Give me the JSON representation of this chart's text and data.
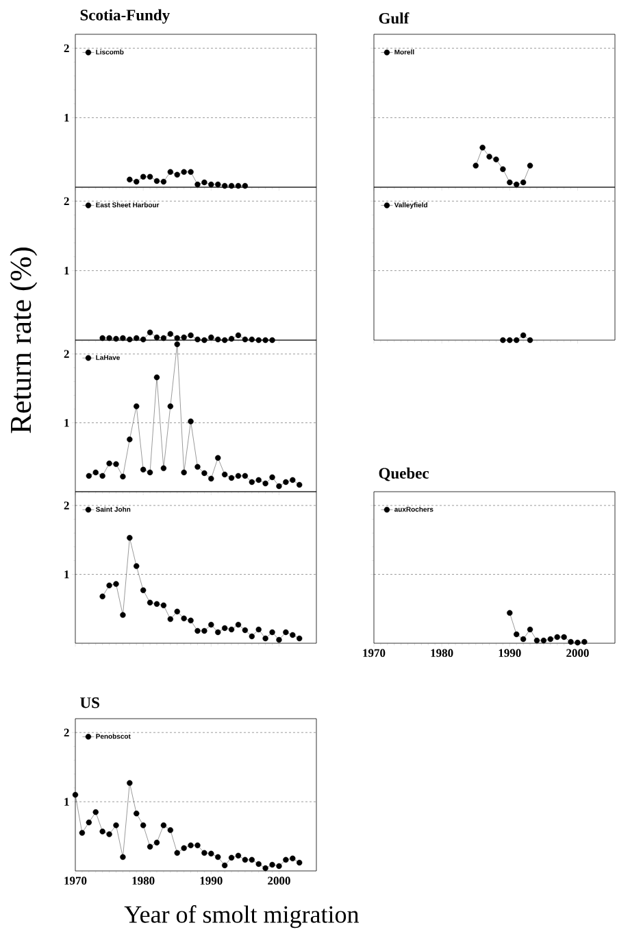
{
  "chart_data": [
    {
      "type": "line",
      "title": "Scotia-Fundy",
      "xlim": [
        1970,
        2005.5
      ],
      "ylim": [
        0,
        2.2
      ],
      "xticks": [
        1970,
        1980,
        1990,
        2000
      ],
      "yticks": [
        1,
        2
      ],
      "grid": "y",
      "legend": "top left",
      "marker": "circle",
      "line_style": "solid",
      "tick_labels": "y",
      "series": [
        {
          "name": "Liscomb",
          "color": "#000000",
          "x": [
            1978,
            1979,
            1980,
            1981,
            1982,
            1983,
            1984,
            1985,
            1986,
            1987,
            1988,
            1989,
            1990,
            1991,
            1992,
            1993,
            1994,
            1995
          ],
          "values": [
            0.11,
            0.08,
            0.15,
            0.15,
            0.09,
            0.08,
            0.22,
            0.18,
            0.22,
            0.22,
            0.04,
            0.07,
            0.04,
            0.04,
            0.02,
            0.02,
            0.02,
            0.02
          ]
        }
      ]
    },
    {
      "type": "line",
      "title": "Gulf",
      "xlim": [
        1970,
        2005.5
      ],
      "ylim": [
        0,
        2.2
      ],
      "xticks": [
        1970,
        1980,
        1990,
        2000
      ],
      "yticks": [
        1,
        2
      ],
      "grid": "y",
      "legend": "top left",
      "marker": "circle",
      "line_style": "solid",
      "tick_labels": false,
      "series": [
        {
          "name": "Morell",
          "color": "#000000",
          "x": [
            1985,
            1986,
            1987,
            1988,
            1989,
            1990,
            1991,
            1992,
            1993
          ],
          "values": [
            0.31,
            0.57,
            0.44,
            0.4,
            0.26,
            0.07,
            0.04,
            0.07,
            0.31
          ]
        }
      ]
    },
    {
      "type": "line",
      "xlim": [
        1970,
        2005.5
      ],
      "ylim": [
        0,
        2.2
      ],
      "xticks": [
        1970,
        1980,
        1990,
        2000
      ],
      "yticks": [
        1,
        2
      ],
      "grid": "y",
      "legend": "top left",
      "marker": "circle",
      "line_style": "solid",
      "tick_labels": "y",
      "series": [
        {
          "name": "East Sheet Harbour",
          "color": "#000000",
          "x": [
            1974,
            1975,
            1976,
            1977,
            1978,
            1979,
            1980,
            1981,
            1982,
            1983,
            1984,
            1985,
            1986,
            1987,
            1988,
            1989,
            1990,
            1991,
            1992,
            1993,
            1994,
            1995,
            1996,
            1997,
            1998,
            1999
          ],
          "values": [
            0.03,
            0.03,
            0.02,
            0.03,
            0.01,
            0.03,
            0.01,
            0.11,
            0.04,
            0.03,
            0.09,
            0.03,
            0.04,
            0.07,
            0.01,
            0.0,
            0.04,
            0.01,
            0.0,
            0.02,
            0.07,
            0.01,
            0.01,
            0.0,
            0.0,
            0.0
          ]
        }
      ]
    },
    {
      "type": "line",
      "xlim": [
        1970,
        2005.5
      ],
      "ylim": [
        0,
        2.2
      ],
      "xticks": [
        1970,
        1980,
        1990,
        2000
      ],
      "yticks": [
        1,
        2
      ],
      "grid": "y",
      "legend": "top left",
      "marker": "circle",
      "line_style": "solid",
      "tick_labels": false,
      "series": [
        {
          "name": "Valleyfield",
          "color": "#000000",
          "x": [
            1989,
            1990,
            1991,
            1992,
            1993
          ],
          "values": [
            0.0,
            0.0,
            0.0,
            0.07,
            0.0
          ]
        }
      ]
    },
    {
      "type": "line",
      "ylabel": "Return rate (%)",
      "xlim": [
        1970,
        2005.5
      ],
      "ylim": [
        0,
        2.2
      ],
      "xticks": [
        1970,
        1980,
        1990,
        2000
      ],
      "yticks": [
        1,
        2
      ],
      "grid": "y",
      "legend": "top left",
      "marker": "circle",
      "line_style": "solid",
      "tick_labels": "y",
      "series": [
        {
          "name": "LaHave",
          "color": "#000000",
          "x": [
            1972,
            1973,
            1974,
            1975,
            1976,
            1977,
            1978,
            1979,
            1980,
            1981,
            1982,
            1983,
            1984,
            1985,
            1986,
            1987,
            1988,
            1989,
            1990,
            1991,
            1992,
            1993,
            1994,
            1995,
            1996,
            1997,
            1998,
            1999,
            2000,
            2001,
            2002,
            2003
          ],
          "values": [
            0.23,
            0.28,
            0.23,
            0.41,
            0.4,
            0.22,
            0.76,
            1.24,
            0.32,
            0.28,
            1.66,
            0.34,
            1.24,
            2.14,
            0.28,
            1.02,
            0.36,
            0.27,
            0.19,
            0.49,
            0.25,
            0.2,
            0.23,
            0.23,
            0.14,
            0.17,
            0.12,
            0.21,
            0.08,
            0.14,
            0.17,
            0.1
          ]
        }
      ]
    },
    {
      "type": "line",
      "xlim": [
        1970,
        2005.5
      ],
      "ylim": [
        0,
        2.2
      ],
      "xticks": [
        1970,
        1980,
        1990,
        2000
      ],
      "yticks": [
        1,
        2
      ],
      "grid": "y",
      "legend": "top left",
      "marker": "circle",
      "line_style": "solid",
      "tick_labels": "y",
      "series": [
        {
          "name": "Saint John",
          "color": "#000000",
          "x": [
            1974,
            1975,
            1976,
            1977,
            1978,
            1979,
            1980,
            1981,
            1982,
            1983,
            1984,
            1985,
            1986,
            1987,
            1988,
            1989,
            1990,
            1991,
            1992,
            1993,
            1994,
            1995,
            1996,
            1997,
            1998,
            1999,
            2000,
            2001,
            2002,
            2003
          ],
          "values": [
            0.68,
            0.84,
            0.86,
            0.41,
            1.53,
            1.12,
            0.77,
            0.59,
            0.57,
            0.55,
            0.35,
            0.46,
            0.36,
            0.33,
            0.18,
            0.18,
            0.27,
            0.16,
            0.22,
            0.2,
            0.27,
            0.19,
            0.1,
            0.2,
            0.07,
            0.16,
            0.05,
            0.16,
            0.12,
            0.07
          ]
        }
      ]
    },
    {
      "type": "line",
      "title": "Quebec",
      "xlim": [
        1970,
        2005.5
      ],
      "ylim": [
        0,
        2.2
      ],
      "xticks": [
        1970,
        1980,
        1990,
        2000
      ],
      "yticks": [
        1,
        2
      ],
      "grid": "y",
      "legend": "top left",
      "marker": "circle",
      "line_style": "solid",
      "tick_labels": "x",
      "series": [
        {
          "name": "auxRochers",
          "color": "#000000",
          "x": [
            1990,
            1991,
            1992,
            1993,
            1994,
            1995,
            1996,
            1997,
            1998,
            1999,
            2000,
            2001
          ],
          "values": [
            0.44,
            0.13,
            0.06,
            0.2,
            0.04,
            0.04,
            0.06,
            0.09,
            0.09,
            0.02,
            0.01,
            0.02
          ]
        }
      ]
    },
    {
      "type": "line",
      "title": "US",
      "xlabel": "Year of smolt migration",
      "xlim": [
        1970,
        2005.5
      ],
      "ylim": [
        0,
        2.2
      ],
      "xticks": [
        1970,
        1980,
        1990,
        2000
      ],
      "yticks": [
        1,
        2
      ],
      "grid": "y",
      "legend": "top left",
      "marker": "circle",
      "line_style": "solid",
      "series": [
        {
          "name": "Penobscot",
          "color": "#000000",
          "x": [
            1970,
            1971,
            1972,
            1973,
            1974,
            1975,
            1976,
            1977,
            1978,
            1979,
            1980,
            1981,
            1982,
            1983,
            1984,
            1985,
            1986,
            1987,
            1988,
            1989,
            1990,
            1991,
            1992,
            1993,
            1994,
            1995,
            1996,
            1997,
            1998,
            1999,
            2000,
            2001,
            2002,
            2003
          ],
          "values": [
            1.1,
            0.55,
            0.7,
            0.85,
            0.57,
            0.53,
            0.66,
            0.2,
            1.27,
            0.83,
            0.66,
            0.35,
            0.41,
            0.66,
            0.59,
            0.26,
            0.33,
            0.37,
            0.37,
            0.26,
            0.25,
            0.2,
            0.08,
            0.19,
            0.22,
            0.16,
            0.16,
            0.1,
            0.04,
            0.09,
            0.07,
            0.16,
            0.18,
            0.12
          ]
        }
      ]
    }
  ]
}
